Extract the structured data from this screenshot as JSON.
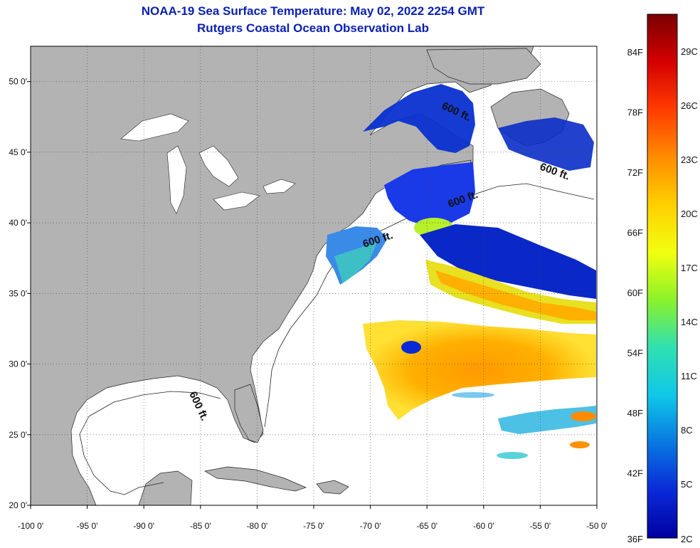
{
  "title": "NOAA-19 Sea Surface Temperature:  May 02, 2022 2254 GMT",
  "subtitle": "Rutgers Coastal Ocean Observation Lab",
  "map": {
    "lon_range": [
      -100,
      -50
    ],
    "lat_range": [
      20,
      52.5
    ],
    "lon_ticks": [
      {
        "value": -100,
        "label": "-100 0'"
      },
      {
        "value": -95,
        "label": "-95 0'"
      },
      {
        "value": -90,
        "label": "-90 0'"
      },
      {
        "value": -85,
        "label": "-85 0'"
      },
      {
        "value": -80,
        "label": "-80 0'"
      },
      {
        "value": -75,
        "label": "-75 0'"
      },
      {
        "value": -70,
        "label": "-70 0'"
      },
      {
        "value": -65,
        "label": "-65 0'"
      },
      {
        "value": -60,
        "label": "-60 0'"
      },
      {
        "value": -55,
        "label": "-55 0'"
      },
      {
        "value": -50,
        "label": "-50 0'"
      }
    ],
    "lat_ticks": [
      {
        "value": 20,
        "label": "20 0'"
      },
      {
        "value": 25,
        "label": "25 0'"
      },
      {
        "value": 30,
        "label": "30 0'"
      },
      {
        "value": 35,
        "label": "35 0'"
      },
      {
        "value": 40,
        "label": "40 0'"
      },
      {
        "value": 45,
        "label": "45 0'"
      },
      {
        "value": 50,
        "label": "50 0'"
      }
    ],
    "contour_label": "600 ft.",
    "land_color": "#b3b3b3",
    "grid": "dotted"
  },
  "colorbar": {
    "fahrenheit": [
      "84F",
      "78F",
      "72F",
      "66F",
      "60F",
      "54F",
      "48F",
      "42F",
      "36F"
    ],
    "celsius": [
      "29C",
      "26C",
      "23C",
      "20C",
      "17C",
      "14C",
      "11C",
      "8C",
      "5C",
      "2C"
    ],
    "colors": [
      "#7a0000",
      "#d40000",
      "#ff3c00",
      "#ff8c00",
      "#ffd000",
      "#f2ff10",
      "#8cf22a",
      "#30e0b0",
      "#10c8e8",
      "#0878e0",
      "#0a2ad8",
      "#0000a0"
    ]
  }
}
